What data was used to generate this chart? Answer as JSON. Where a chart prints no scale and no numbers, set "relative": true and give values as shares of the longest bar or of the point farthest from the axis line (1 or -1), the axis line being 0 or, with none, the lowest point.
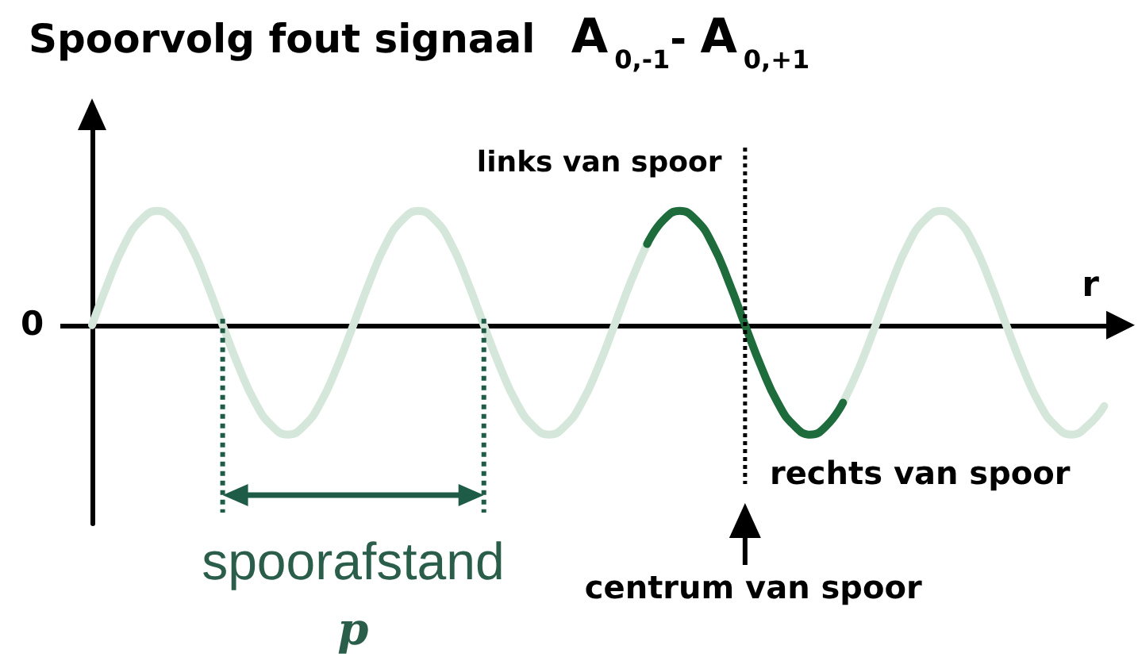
{
  "chart_data": {
    "type": "line",
    "title": "Spoorvolg fout signaal A$_{0,-1}$- A$_{0,+1}$",
    "xlabel": "r",
    "categories": [
      null,
      null,
      null,
      null,
      null,
      null,
      null,
      null,
      null,
      null,
      null,
      null,
      null,
      null,
      null,
      null,
      null,
      null,
      null,
      null,
      null,
      null,
      null,
      null,
      null,
      null,
      null,
      null,
      null,
      null,
      null,
      null,
      null,
      null,
      null,
      null,
      null,
      null,
      null,
      null,
      null,
      null,
      null,
      null,
      null,
      null,
      null,
      null,
      null,
      null,
      null,
      null,
      null,
      null,
      null,
      null,
      null,
      null,
      null,
      null,
      null,
      null,
      null,
      null
    ],
    "series": [
      {
        "color": "#d5e7da",
        "values": [
          0,
          0.38,
          0.71,
          0.92,
          1,
          0.92,
          0.71,
          0.38,
          0,
          -0.37,
          -0.68,
          -0.88,
          -0.96,
          -0.88,
          -0.68,
          -0.37,
          0,
          0.38,
          0.71,
          0.92,
          1,
          0.92,
          0.71,
          0.38,
          0,
          -0.37,
          -0.68,
          -0.88,
          -0.96,
          -0.88,
          -0.68,
          -0.37,
          0,
          0.38,
          0.71,
          null,
          null,
          null,
          null,
          null,
          null,
          null,
          null,
          null,
          null,
          null,
          -0.68,
          -0.37,
          0,
          0.38,
          0.71,
          0.92,
          1,
          0.92,
          0.71,
          0.38,
          0,
          -0.37,
          -0.68,
          -0.88,
          -0.96,
          -0.88,
          -0.71,
          null
        ]
      },
      {
        "color": "#1e6b3b",
        "values": [
          null,
          null,
          null,
          null,
          null,
          null,
          null,
          null,
          null,
          null,
          null,
          null,
          null,
          null,
          null,
          null,
          null,
          null,
          null,
          null,
          null,
          null,
          null,
          null,
          null,
          null,
          null,
          null,
          null,
          null,
          null,
          null,
          null,
          null,
          0.71,
          0.92,
          1,
          0.92,
          0.71,
          0.38,
          0,
          -0.37,
          -0.68,
          -0.88,
          -0.96,
          -0.88,
          -0.68,
          null,
          null,
          null,
          null,
          null,
          null,
          null,
          null,
          null,
          null,
          null,
          null,
          null,
          null,
          null,
          null,
          null
        ]
      }
    ],
    "relative": true,
    "tick_labels": false,
    "marker": "none",
    "line_style": "solid",
    "annotations": [
      "links van spoor",
      "0",
      "rechts van spoor",
      "spoorafstand",
      "centrum van spoor",
      "p"
    ]
  }
}
